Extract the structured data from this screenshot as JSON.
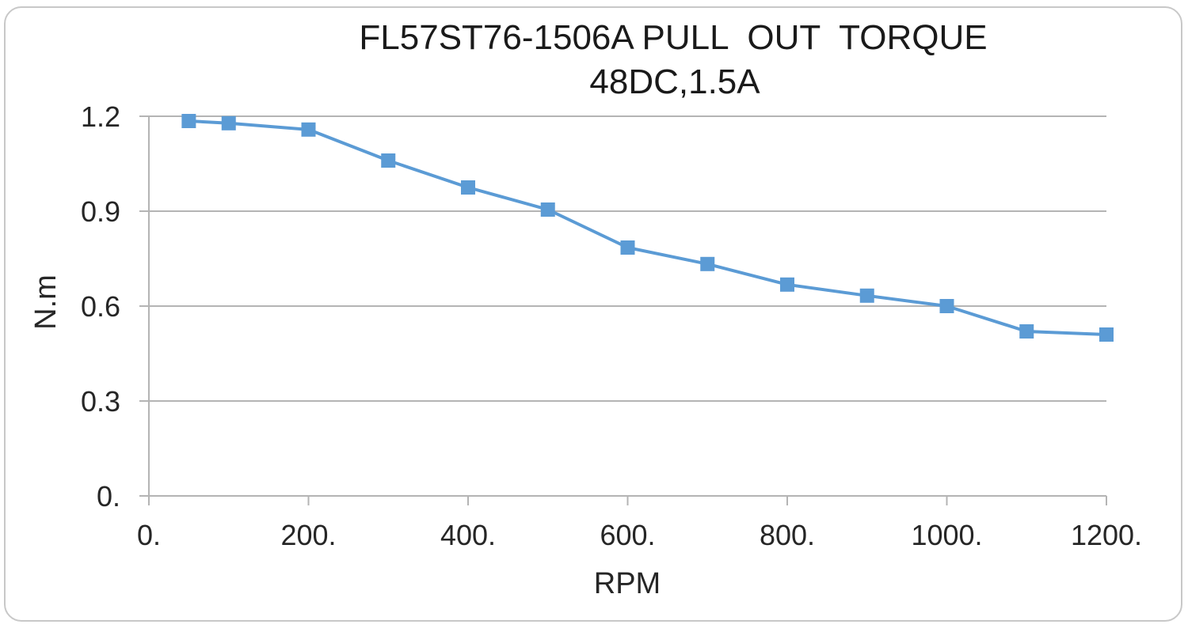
{
  "chart_data": {
    "type": "line",
    "title": "FL57ST76-1506A PULL  OUT  TORQUE",
    "subtitle": "48DC,1.5A",
    "xlabel": "RPM",
    "ylabel": "N.m",
    "xlim": [
      0,
      1200
    ],
    "ylim": [
      0,
      1.2
    ],
    "x_ticks": [
      0,
      200,
      400,
      600,
      800,
      1000,
      1200
    ],
    "x_tick_labels": [
      "0.",
      "200.",
      "400.",
      "600.",
      "800.",
      "1000.",
      "1200."
    ],
    "y_ticks": [
      0,
      0.3,
      0.6,
      0.9,
      1.2
    ],
    "y_tick_labels": [
      "0.",
      "0.3",
      "0.6",
      "0.9",
      "1.2"
    ],
    "grid": true,
    "series": [
      {
        "x": [
          50,
          100,
          200,
          300,
          400,
          500,
          600,
          700,
          800,
          900,
          1000,
          1100,
          1200
        ],
        "y": [
          1.185,
          1.178,
          1.158,
          1.06,
          0.975,
          0.905,
          0.785,
          0.733,
          0.668,
          0.633,
          0.6,
          0.52,
          0.51
        ],
        "color": "#5b9bd5",
        "marker": "square"
      }
    ]
  }
}
